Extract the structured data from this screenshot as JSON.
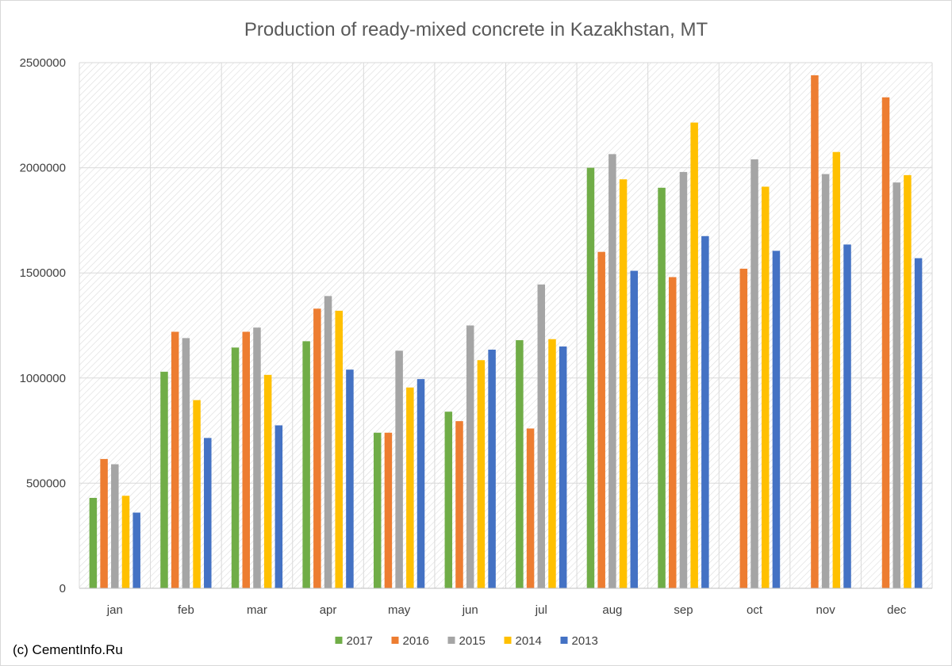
{
  "footer": {
    "credit": "(c) CementInfo.Ru"
  },
  "chart_data": {
    "type": "bar",
    "title": "Production of ready-mixed concrete in Kazakhstan, MT",
    "xlabel": "",
    "ylabel": "",
    "ylim": [
      0,
      2500000
    ],
    "yticks": [
      0,
      500000,
      1000000,
      1500000,
      2000000,
      2500000
    ],
    "ytick_labels": [
      "0",
      "500000",
      "1000000",
      "1500000",
      "2000000",
      "2500000"
    ],
    "grid": true,
    "legend_position": "bottom",
    "categories": [
      "jan",
      "feb",
      "mar",
      "apr",
      "may",
      "jun",
      "jul",
      "aug",
      "sep",
      "oct",
      "nov",
      "dec"
    ],
    "series": [
      {
        "name": "2017",
        "color": "#70ad47",
        "values": [
          430000,
          1030000,
          1145000,
          1175000,
          740000,
          840000,
          1180000,
          2000000,
          1905000,
          null,
          null,
          null
        ]
      },
      {
        "name": "2016",
        "color": "#ed7d31",
        "values": [
          615000,
          1220000,
          1220000,
          1330000,
          740000,
          795000,
          760000,
          1600000,
          1480000,
          1520000,
          2440000,
          2335000
        ]
      },
      {
        "name": "2015",
        "color": "#a5a5a5",
        "values": [
          590000,
          1190000,
          1240000,
          1390000,
          1130000,
          1250000,
          1445000,
          2065000,
          1980000,
          2040000,
          1970000,
          1930000
        ]
      },
      {
        "name": "2014",
        "color": "#ffc000",
        "values": [
          440000,
          895000,
          1015000,
          1320000,
          955000,
          1085000,
          1185000,
          1945000,
          2215000,
          1910000,
          2075000,
          1965000
        ]
      },
      {
        "name": "2013",
        "color": "#4472c4",
        "values": [
          360000,
          715000,
          775000,
          1040000,
          995000,
          1135000,
          1150000,
          1510000,
          1675000,
          1605000,
          1635000,
          1570000
        ]
      }
    ]
  }
}
